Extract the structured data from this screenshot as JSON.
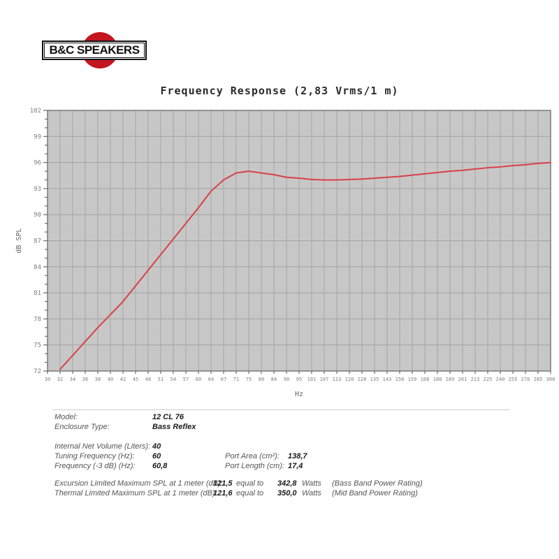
{
  "logo": {
    "text": "B&C SPEAKERS",
    "circle_color": "#c4161f"
  },
  "chart_data": {
    "type": "line",
    "title": "Frequency Response (2,83 Vrms/1 m)",
    "xlabel": "Hz",
    "ylabel": "dB SPL",
    "x_scale": "log",
    "xlim": [
      30,
      300
    ],
    "ylim": [
      72,
      102
    ],
    "y_tick_step": 3,
    "y_minor_step": 1,
    "y_ticks": [
      72,
      75,
      78,
      81,
      84,
      87,
      90,
      93,
      96,
      99,
      102
    ],
    "x_ticks": [
      30,
      32,
      34,
      36,
      38,
      40,
      42,
      45,
      48,
      51,
      54,
      57,
      60,
      64,
      67,
      71,
      75,
      80,
      84,
      90,
      95,
      101,
      107,
      113,
      120,
      128,
      135,
      143,
      150,
      159,
      168,
      180,
      189,
      201,
      213,
      225,
      240,
      255,
      270,
      285,
      300
    ],
    "grid": true,
    "legend": "none",
    "colors": {
      "plot_bg": "#c7c7c7",
      "grid": "#a4a4a4",
      "frame": "#6a6a6a",
      "tick_text": "#7d7d7d",
      "axis_text": "#666666"
    },
    "series": [
      {
        "name": "SPL",
        "color": "#d9404a",
        "points": [
          [
            32,
            72.2
          ],
          [
            34,
            73.8
          ],
          [
            36,
            75.4
          ],
          [
            38,
            77.0
          ],
          [
            40,
            78.5
          ],
          [
            42,
            80.0
          ],
          [
            45,
            81.8
          ],
          [
            48,
            83.6
          ],
          [
            51,
            85.4
          ],
          [
            54,
            87.2
          ],
          [
            57,
            89.0
          ],
          [
            60,
            90.8
          ],
          [
            64,
            92.7
          ],
          [
            67,
            94.0
          ],
          [
            71,
            94.8
          ],
          [
            75,
            95.0
          ],
          [
            80,
            94.8
          ],
          [
            84,
            94.6
          ],
          [
            90,
            94.3
          ],
          [
            95,
            94.2
          ],
          [
            101,
            94.05
          ],
          [
            107,
            94.0
          ],
          [
            113,
            94.0
          ],
          [
            120,
            94.05
          ],
          [
            128,
            94.1
          ],
          [
            135,
            94.2
          ],
          [
            143,
            94.3
          ],
          [
            150,
            94.4
          ],
          [
            159,
            94.55
          ],
          [
            168,
            94.7
          ],
          [
            180,
            94.85
          ],
          [
            189,
            95.0
          ],
          [
            201,
            95.1
          ],
          [
            213,
            95.25
          ],
          [
            225,
            95.4
          ],
          [
            240,
            95.5
          ],
          [
            255,
            95.65
          ],
          [
            270,
            95.75
          ],
          [
            285,
            95.9
          ],
          [
            300,
            96.0
          ]
        ]
      }
    ]
  },
  "specs": {
    "rows1": [
      {
        "label": "Model:",
        "value": "12 CL 76"
      },
      {
        "label": "Enclosure Type:",
        "value": "Bass Reflex"
      }
    ],
    "rows2": [
      {
        "label": "Internal Net Volume (Liters):",
        "value": "40",
        "label2": "",
        "value2": ""
      },
      {
        "label": "Tuning Frequency (Hz):",
        "value": "60",
        "label2": "Port Area (cm²):",
        "value2": "138,7"
      },
      {
        "label": "Frequency (-3 dB) (Hz):",
        "value": "60,8",
        "label2": "Port Length (cm):",
        "value2": "17,4"
      }
    ],
    "rows3": [
      {
        "label": "Excursion Limited Maximum SPL at 1 meter (dB):",
        "value": "121,5",
        "mid": "equal to",
        "watts": "342,8",
        "unit": "Watts",
        "note": "(Bass Band Power Rating)"
      },
      {
        "label": "Thermal Limited Maximum SPL at 1 meter (dB):",
        "value": "121,6",
        "mid": "equal to",
        "watts": "350,0",
        "unit": "Watts",
        "note": "(Mid Band Power Rating)"
      }
    ]
  }
}
